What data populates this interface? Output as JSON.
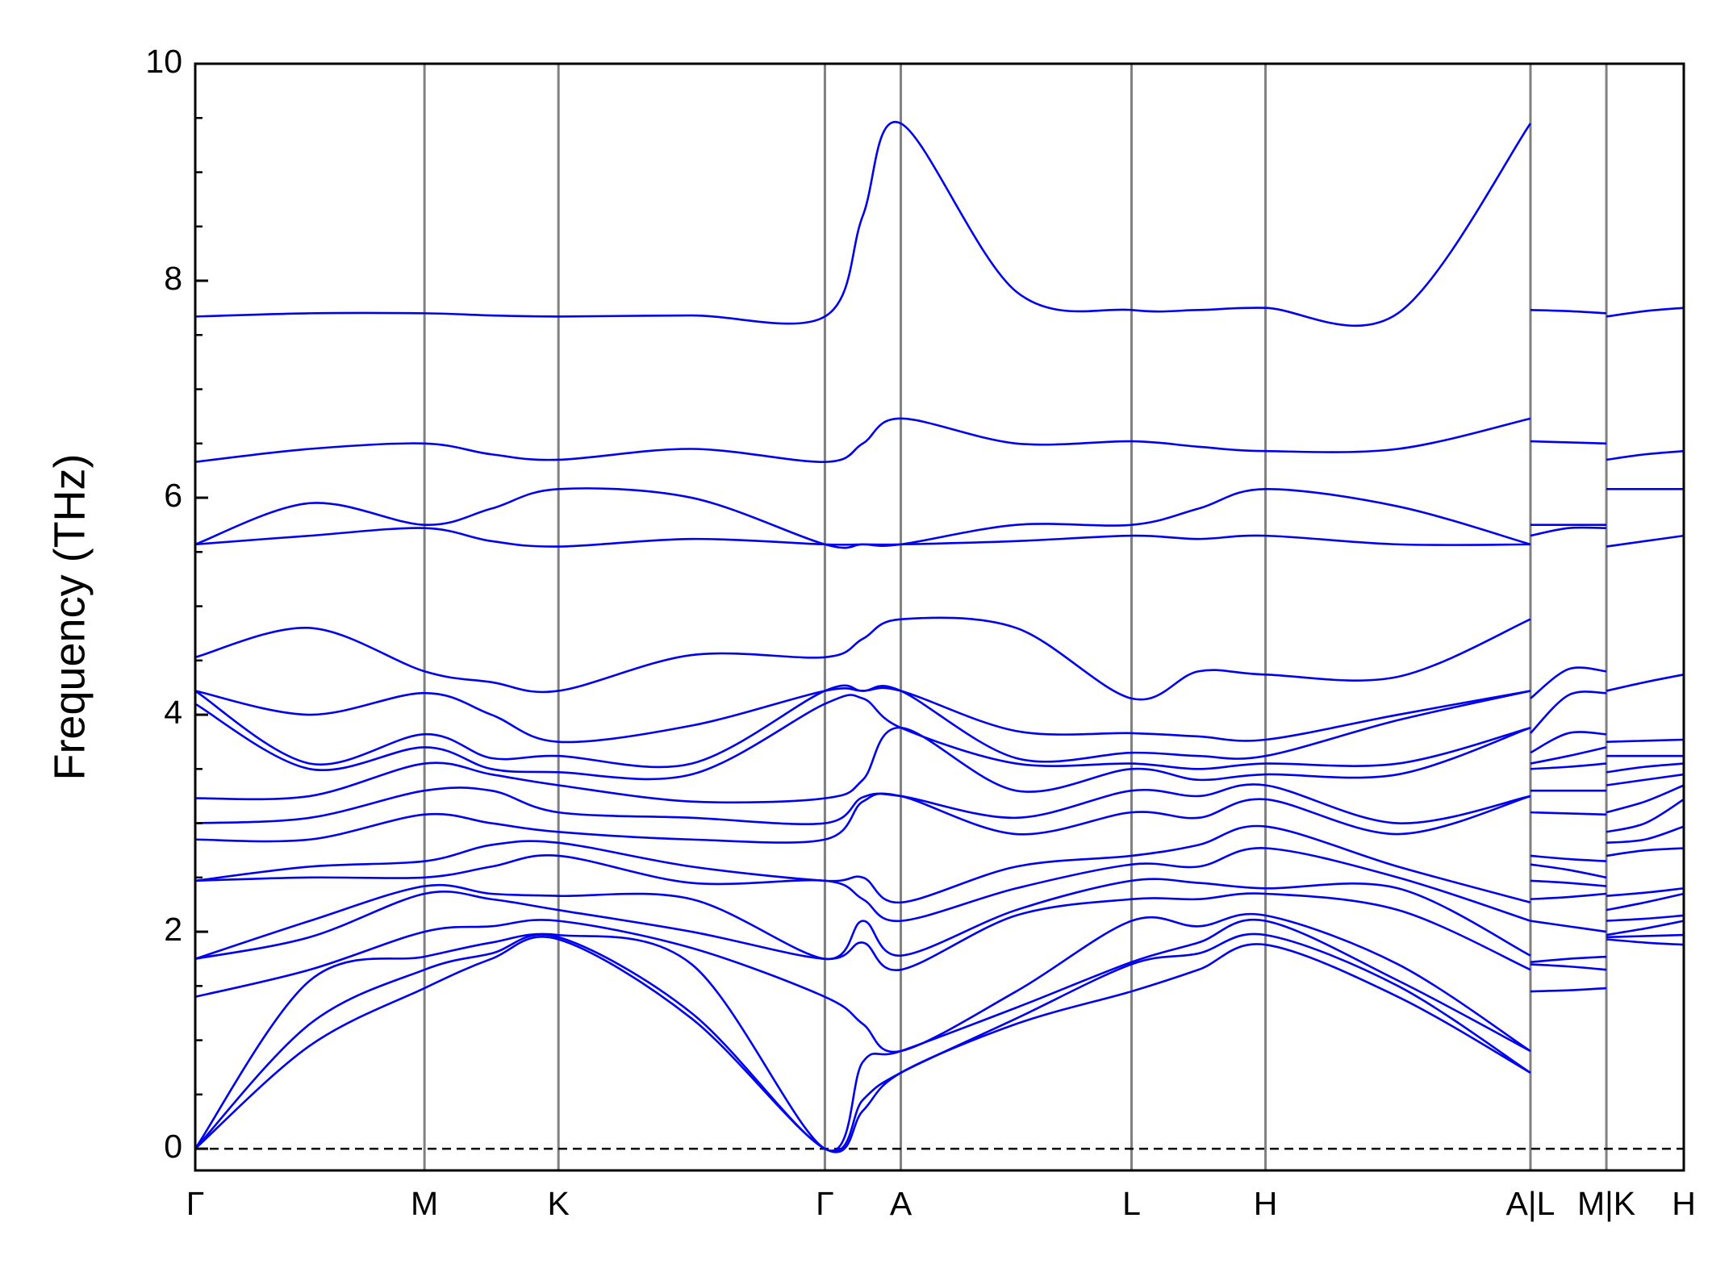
{
  "chart_data": {
    "type": "line",
    "ylabel": "Frequency (THz)",
    "color": "#0000ee",
    "vline_color": "#808080",
    "hline": 0,
    "xlim": [
      0,
      1.0
    ],
    "ylim": [
      -0.2,
      10
    ],
    "yticks": [
      0,
      2,
      4,
      6,
      8,
      10
    ],
    "yminorticks": [
      0.5,
      1,
      1.5,
      2.5,
      3,
      3.5,
      4.5,
      5,
      5.5,
      6.5,
      7,
      7.5,
      8.5,
      9,
      9.5
    ],
    "xticks": [
      {
        "value": 0,
        "label": "Γ"
      },
      {
        "value": 0.154,
        "label": "M"
      },
      {
        "value": 0.244,
        "label": "K"
      },
      {
        "value": 0.423,
        "label": "Γ"
      },
      {
        "value": 0.474,
        "label": "A"
      },
      {
        "value": 0.629,
        "label": "L"
      },
      {
        "value": 0.719,
        "label": "H"
      },
      {
        "value": 0.897,
        "label": "A|L"
      },
      {
        "value": 0.948,
        "label": "M|K"
      },
      {
        "value": 1.0,
        "label": "H"
      }
    ],
    "x": [
      0,
      0.077,
      0.154,
      0.199,
      0.244,
      0.3335,
      0.423,
      0.4485,
      0.474,
      0.5515,
      0.629,
      0.674,
      0.719,
      0.808,
      0.897,
      0.897,
      0.897,
      0.9225,
      0.948,
      0.948,
      0.948,
      0.974,
      1.0
    ],
    "series": [
      {
        "values": [
          0,
          0.95,
          1.48,
          1.75,
          1.93,
          1.2,
          0,
          0.35,
          0.7,
          1.15,
          1.45,
          1.65,
          1.88,
          1.4,
          0.7,
          null,
          1.45,
          1.46,
          1.48,
          null,
          1.93,
          1.9,
          1.88
        ]
      },
      {
        "values": [
          0,
          1.15,
          1.65,
          1.8,
          1.95,
          1.25,
          0,
          0.45,
          0.7,
          1.2,
          1.7,
          1.8,
          1.97,
          1.5,
          0.7,
          null,
          1.7,
          1.68,
          1.65,
          null,
          1.95,
          1.96,
          1.97
        ]
      },
      {
        "values": [
          0,
          1.55,
          1.77,
          1.9,
          1.97,
          1.7,
          0,
          0.8,
          0.9,
          1.3,
          1.72,
          1.9,
          2.1,
          1.55,
          0.9,
          null,
          1.72,
          1.75,
          1.77,
          null,
          1.97,
          2.03,
          2.1
        ]
      },
      {
        "values": [
          1.4,
          1.65,
          2.0,
          2.05,
          2.1,
          1.85,
          1.4,
          1.15,
          0.9,
          1.45,
          2.1,
          2.05,
          2.15,
          1.7,
          0.9,
          null,
          2.1,
          2.05,
          2.0,
          null,
          2.1,
          2.12,
          2.15
        ]
      },
      {
        "values": [
          1.75,
          1.95,
          2.35,
          2.3,
          2.2,
          2.0,
          1.75,
          1.9,
          1.65,
          2.15,
          2.3,
          2.3,
          2.35,
          2.2,
          1.65,
          null,
          2.3,
          2.32,
          2.35,
          null,
          2.2,
          2.27,
          2.35
        ]
      },
      {
        "values": [
          1.75,
          2.1,
          2.42,
          2.35,
          2.33,
          2.3,
          1.75,
          2.1,
          1.78,
          2.2,
          2.47,
          2.45,
          2.4,
          2.4,
          1.78,
          null,
          2.47,
          2.45,
          2.42,
          null,
          2.33,
          2.36,
          2.4
        ]
      },
      {
        "values": [
          2.47,
          2.5,
          2.5,
          2.6,
          2.7,
          2.45,
          2.47,
          2.3,
          2.1,
          2.4,
          2.62,
          2.6,
          2.77,
          2.5,
          2.1,
          null,
          2.62,
          2.57,
          2.5,
          null,
          2.7,
          2.75,
          2.77
        ]
      },
      {
        "values": [
          2.47,
          2.6,
          2.65,
          2.8,
          2.82,
          2.6,
          2.47,
          2.5,
          2.27,
          2.6,
          2.7,
          2.8,
          2.97,
          2.6,
          2.27,
          null,
          2.7,
          2.67,
          2.65,
          null,
          2.82,
          2.85,
          2.97
        ]
      },
      {
        "values": [
          2.85,
          2.85,
          3.08,
          3.0,
          2.92,
          2.85,
          2.85,
          3.2,
          3.25,
          2.9,
          3.1,
          3.05,
          3.22,
          2.9,
          3.25,
          null,
          3.1,
          3.09,
          3.08,
          null,
          2.92,
          3.0,
          3.22
        ]
      },
      {
        "values": [
          3.0,
          3.05,
          3.3,
          3.3,
          3.1,
          3.05,
          3.0,
          3.24,
          3.25,
          3.05,
          3.3,
          3.25,
          3.35,
          3.0,
          3.25,
          null,
          3.3,
          3.3,
          3.3,
          null,
          3.1,
          3.2,
          3.35
        ]
      },
      {
        "values": [
          3.23,
          3.25,
          3.55,
          3.45,
          3.35,
          3.2,
          3.23,
          3.4,
          3.88,
          3.3,
          3.5,
          3.4,
          3.45,
          3.45,
          3.88,
          null,
          3.5,
          3.52,
          3.55,
          null,
          3.35,
          3.4,
          3.45
        ]
      },
      {
        "values": [
          4.1,
          3.5,
          3.7,
          3.5,
          3.47,
          3.45,
          4.1,
          4.15,
          3.88,
          3.55,
          3.55,
          3.5,
          3.55,
          3.55,
          3.88,
          null,
          3.55,
          3.62,
          3.7,
          null,
          3.47,
          3.52,
          3.55
        ]
      },
      {
        "values": [
          4.22,
          3.55,
          3.82,
          3.6,
          3.62,
          3.55,
          4.22,
          4.22,
          4.22,
          3.6,
          3.65,
          3.62,
          3.62,
          3.95,
          4.22,
          null,
          3.65,
          3.83,
          3.82,
          null,
          3.62,
          3.62,
          3.62
        ]
      },
      {
        "values": [
          4.22,
          4.0,
          4.2,
          4.0,
          3.75,
          3.9,
          4.22,
          4.22,
          4.22,
          3.85,
          3.83,
          3.8,
          3.77,
          4.0,
          4.22,
          null,
          3.83,
          4.18,
          4.2,
          null,
          3.75,
          3.76,
          3.77
        ]
      },
      {
        "values": [
          4.53,
          4.8,
          4.4,
          4.3,
          4.22,
          4.55,
          4.53,
          4.7,
          4.88,
          4.8,
          4.15,
          4.4,
          4.37,
          4.35,
          4.88,
          null,
          4.15,
          4.42,
          4.4,
          null,
          4.22,
          4.3,
          4.37
        ]
      },
      {
        "values": [
          5.57,
          5.65,
          5.72,
          5.6,
          5.55,
          5.62,
          5.57,
          5.57,
          5.57,
          5.6,
          5.65,
          5.62,
          5.65,
          5.57,
          5.57,
          null,
          5.65,
          5.72,
          5.72,
          null,
          5.55,
          5.6,
          5.65
        ]
      },
      {
        "values": [
          5.57,
          5.95,
          5.75,
          5.9,
          6.08,
          6.0,
          5.57,
          5.57,
          5.57,
          5.75,
          5.75,
          5.9,
          6.08,
          5.92,
          5.57,
          null,
          5.75,
          5.75,
          5.75,
          null,
          6.08,
          6.08,
          6.08
        ]
      },
      {
        "values": [
          6.33,
          6.45,
          6.5,
          6.4,
          6.35,
          6.45,
          6.33,
          6.5,
          6.73,
          6.5,
          6.52,
          6.47,
          6.43,
          6.45,
          6.73,
          null,
          6.52,
          6.51,
          6.5,
          null,
          6.35,
          6.4,
          6.43
        ]
      },
      {
        "values": [
          7.67,
          7.7,
          7.7,
          7.68,
          7.67,
          7.68,
          7.67,
          8.6,
          9.45,
          7.9,
          7.73,
          7.73,
          7.75,
          7.7,
          9.45,
          null,
          7.73,
          7.72,
          7.7,
          null,
          7.67,
          7.72,
          7.75
        ]
      }
    ]
  }
}
